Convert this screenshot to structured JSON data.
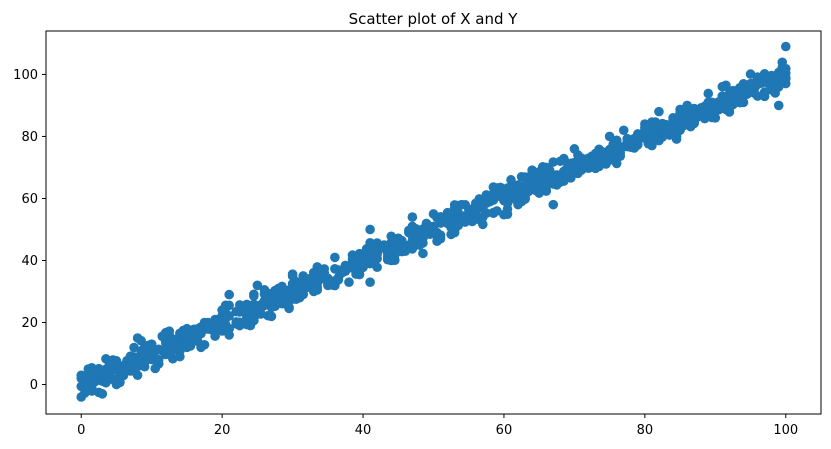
{
  "chart_data": {
    "type": "scatter",
    "title": "Scatter plot of X and Y",
    "xlabel": "",
    "ylabel": "",
    "xlim": [
      -5,
      105
    ],
    "ylim": [
      -9.5,
      114
    ],
    "x_ticks": [
      0,
      20,
      40,
      60,
      80,
      100
    ],
    "y_ticks": [
      0,
      20,
      40,
      60,
      80,
      100
    ],
    "grid": false,
    "legend": "none",
    "marker_color": "#1f77b4",
    "trend": {
      "slope": 1.0,
      "intercept": 0.0
    },
    "points": [
      [
        0,
        -4
      ],
      [
        0,
        2
      ],
      [
        1,
        0
      ],
      [
        1,
        5
      ],
      [
        2,
        1
      ],
      [
        3,
        -3
      ],
      [
        3,
        4
      ],
      [
        4,
        2
      ],
      [
        5,
        0
      ],
      [
        5,
        6
      ],
      [
        6,
        4
      ],
      [
        7,
        9
      ],
      [
        8,
        3
      ],
      [
        8,
        15
      ],
      [
        9,
        10
      ],
      [
        10,
        12
      ],
      [
        11,
        8
      ],
      [
        12,
        16
      ],
      [
        13,
        11
      ],
      [
        14,
        9
      ],
      [
        15,
        18
      ],
      [
        16,
        14
      ],
      [
        17,
        12
      ],
      [
        18,
        20
      ],
      [
        19,
        17
      ],
      [
        20,
        24
      ],
      [
        21,
        16
      ],
      [
        21,
        29
      ],
      [
        22,
        20
      ],
      [
        23,
        25
      ],
      [
        24,
        19
      ],
      [
        25,
        32
      ],
      [
        26,
        27
      ],
      [
        27,
        22
      ],
      [
        28,
        31
      ],
      [
        29,
        26
      ],
      [
        30,
        35
      ],
      [
        31,
        28
      ],
      [
        32,
        34
      ],
      [
        33,
        30
      ],
      [
        34,
        36
      ],
      [
        35,
        32
      ],
      [
        36,
        41
      ],
      [
        37,
        36
      ],
      [
        38,
        33
      ],
      [
        39,
        40
      ],
      [
        40,
        38
      ],
      [
        41,
        33
      ],
      [
        41,
        50
      ],
      [
        42,
        42
      ],
      [
        43,
        44
      ],
      [
        44,
        40
      ],
      [
        45,
        47
      ],
      [
        46,
        43
      ],
      [
        47,
        54
      ],
      [
        48,
        45
      ],
      [
        49,
        50
      ],
      [
        50,
        55
      ],
      [
        51,
        47
      ],
      [
        52,
        52
      ],
      [
        53,
        49
      ],
      [
        54,
        58
      ],
      [
        55,
        53
      ],
      [
        56,
        57
      ],
      [
        57,
        54
      ],
      [
        58,
        61
      ],
      [
        59,
        56
      ],
      [
        60,
        60
      ],
      [
        61,
        66
      ],
      [
        62,
        58
      ],
      [
        63,
        63
      ],
      [
        64,
        68
      ],
      [
        65,
        62
      ],
      [
        66,
        70
      ],
      [
        67,
        65
      ],
      [
        67,
        58
      ],
      [
        68,
        72
      ],
      [
        69,
        68
      ],
      [
        70,
        76
      ],
      [
        71,
        71
      ],
      [
        72,
        73
      ],
      [
        73,
        70
      ],
      [
        74,
        75
      ],
      [
        75,
        80
      ],
      [
        76,
        76
      ],
      [
        77,
        82
      ],
      [
        78,
        78
      ],
      [
        79,
        80
      ],
      [
        80,
        84
      ],
      [
        81,
        79
      ],
      [
        82,
        88
      ],
      [
        83,
        81
      ],
      [
        84,
        86
      ],
      [
        85,
        84
      ],
      [
        86,
        90
      ],
      [
        87,
        85
      ],
      [
        88,
        89
      ],
      [
        89,
        91
      ],
      [
        90,
        86
      ],
      [
        91,
        93
      ],
      [
        92,
        89
      ],
      [
        93,
        94
      ],
      [
        94,
        91
      ],
      [
        95,
        97
      ],
      [
        96,
        93
      ],
      [
        97,
        99
      ],
      [
        98,
        95
      ],
      [
        99,
        90
      ],
      [
        99,
        96
      ],
      [
        100,
        109
      ]
    ]
  }
}
